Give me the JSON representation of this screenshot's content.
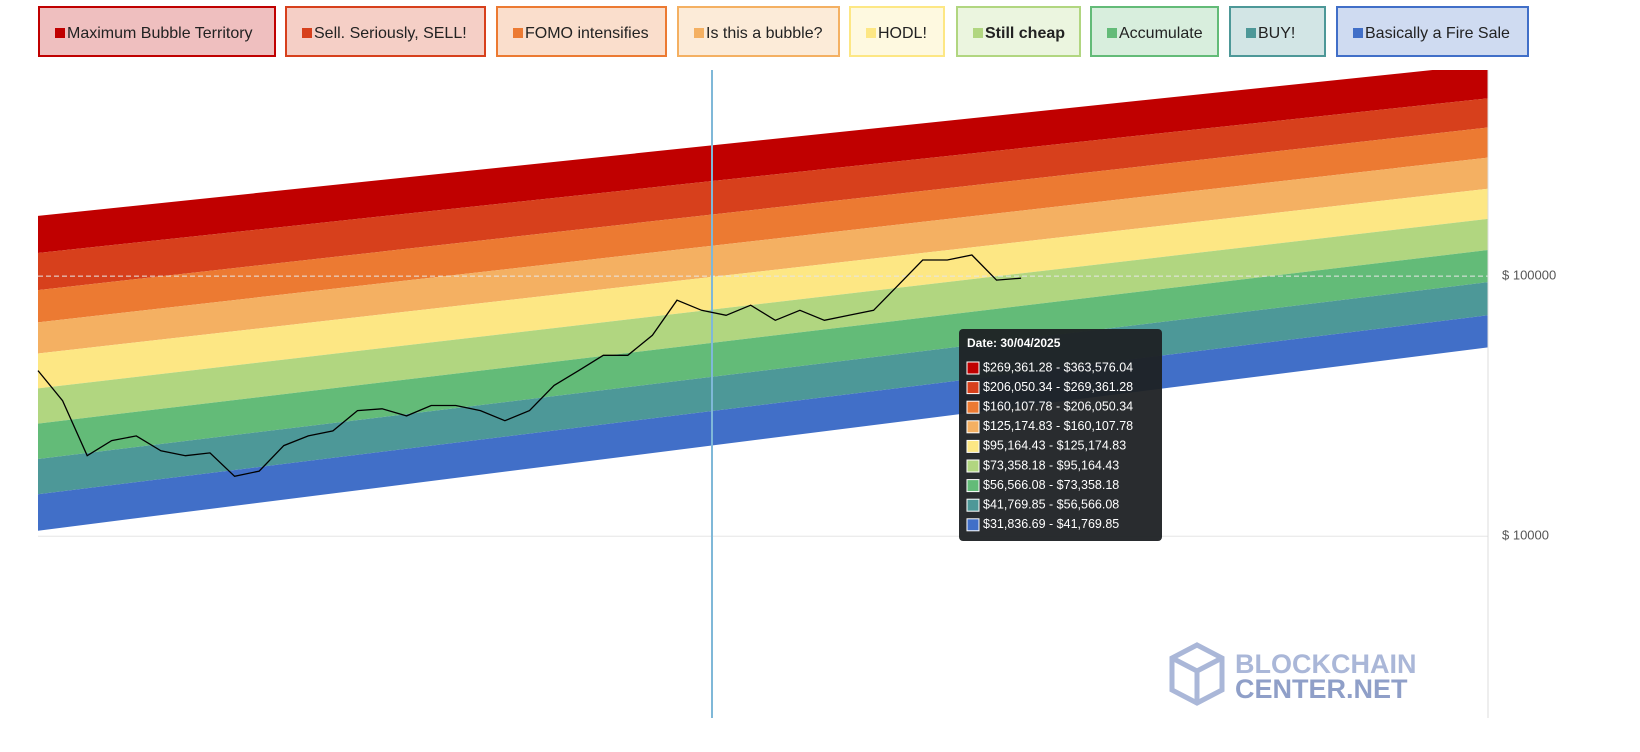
{
  "chart_data": {
    "type": "rainbow",
    "log_scale": true,
    "ylim": [
      2000,
      620000
    ],
    "yticks": [
      {
        "value": 10000,
        "label": "$ 10000"
      },
      {
        "value": 100000,
        "label": "$ 100000"
      }
    ],
    "grid": true,
    "categories": [
      null,
      null,
      null,
      null,
      null,
      null,
      null,
      null,
      null,
      null,
      null,
      null,
      null,
      null,
      null,
      null,
      null,
      null,
      null,
      null,
      null,
      null,
      null,
      null,
      null,
      null,
      null,
      null,
      null,
      null,
      null,
      null,
      null,
      null,
      null,
      null,
      null,
      null,
      null,
      null,
      null,
      null,
      null,
      null,
      null,
      null,
      null,
      null,
      null,
      null,
      null,
      null,
      null,
      null,
      null,
      null,
      null,
      null,
      null,
      null
    ],
    "price": {
      "color": "#000000",
      "values": [
        43300,
        33200,
        20400,
        23300,
        24300,
        21300,
        20400,
        20900,
        17000,
        17800,
        22300,
        24300,
        25400,
        30400,
        30900,
        29000,
        31800,
        31800,
        30400,
        27800,
        30400,
        38000,
        43300,
        49600,
        49600,
        59200,
        80800,
        73900,
        70700,
        77300,
        67600,
        73900,
        67600,
        70700,
        73900,
        92300,
        115300,
        115300,
        120500,
        96500,
        98200,
        null,
        null,
        null,
        null,
        null,
        null,
        null,
        null,
        null,
        null,
        null,
        null,
        null,
        null,
        null,
        null,
        null,
        null,
        null
      ]
    },
    "bands": [
      {
        "name": "Maximum Bubble Territory",
        "color": "#c00000",
        "start": [
          122700,
          170400
        ],
        "end": [
          482500,
          652700
        ],
        "range_label": "$269,361.28 - $363,576.04"
      },
      {
        "name": "Sell. Seriously, SELL!",
        "color": "#d7401c",
        "start": [
          88300,
          122700
        ],
        "end": [
          372700,
          482500
        ],
        "range_label": "$206,050.34 - $269,361.28"
      },
      {
        "name": "FOMO intensifies",
        "color": "#ec7a32",
        "start": [
          66400,
          88300
        ],
        "end": [
          285500,
          372700
        ],
        "range_label": "$160,107.78 - $206,050.34"
      },
      {
        "name": "Is this a bubble?",
        "color": "#f4b062",
        "start": [
          50400,
          66400
        ],
        "end": [
          216800,
          285500
        ],
        "range_label": "$125,174.83 - $160,107.78"
      },
      {
        "name": "HODL!",
        "color": "#fde784",
        "start": [
          37000,
          50400
        ],
        "end": [
          166000,
          216800
        ],
        "range_label": "$95,164.43 - $125,174.83"
      },
      {
        "name": "Still cheap",
        "color": "#b1d680",
        "start": [
          27100,
          37000
        ],
        "end": [
          126000,
          166000
        ],
        "range_label": "$73,358.18 - $95,164.43"
      },
      {
        "name": "Accumulate",
        "color": "#63bb78",
        "start": [
          19800,
          27100
        ],
        "end": [
          94800,
          126000
        ],
        "range_label": "$56,566.08 - $73,358.18"
      },
      {
        "name": "BUY!",
        "color": "#4d9898",
        "start": [
          14500,
          19800
        ],
        "end": [
          70700,
          94800
        ],
        "range_label": "$41,769.85 - $56,566.08"
      },
      {
        "name": "Basically a Fire Sale",
        "color": "#416fc8",
        "start": [
          10500,
          14500
        ],
        "end": [
          53200,
          70700
        ],
        "range_label": "$31,836.69 - $41,769.85"
      }
    ],
    "tooltip_title": "Date: 30/04/2025",
    "watermark": [
      "BLOCKCHAIN",
      "CENTER.NET"
    ]
  }
}
